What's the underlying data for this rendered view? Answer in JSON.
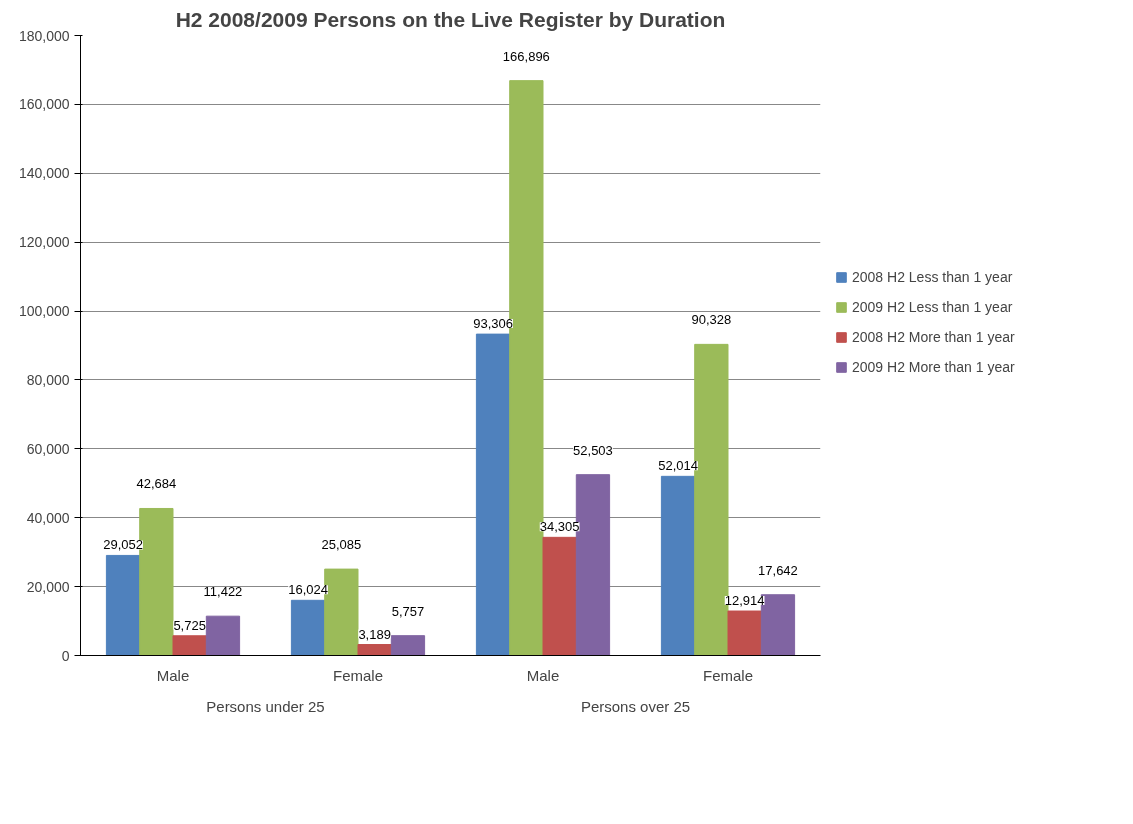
{
  "chart_data": {
    "type": "bar",
    "title": "H2 2008/2009 Persons on the Live Register by Duration",
    "categories": [
      "Male",
      "Female",
      "Male",
      "Female"
    ],
    "series": [
      {
        "name": "2008 H2 Less than 1 year",
        "color": "#4f81bd",
        "values": [
          29052,
          16024,
          93306,
          52014
        ],
        "value_labels": [
          "29,052",
          "16,024",
          "93,306",
          "52,014"
        ]
      },
      {
        "name": "2009 H2 Less than 1 year",
        "color": "#9bbb59",
        "values": [
          42684,
          25085,
          166896,
          90328
        ],
        "value_labels": [
          "42,684",
          "25,085",
          "166,896",
          "90,328"
        ]
      },
      {
        "name": "2008 H2 More than 1 year",
        "color": "#c0504d",
        "values": [
          5725,
          3189,
          34305,
          12914
        ],
        "value_labels": [
          "5,725",
          "3,189",
          "34,305",
          "12,914"
        ]
      },
      {
        "name": "2009 H2 More than 1 year",
        "color": "#8064a2",
        "values": [
          11422,
          5757,
          52503,
          17642
        ],
        "value_labels": [
          "11,422",
          "5,757",
          "52,503",
          "17,642"
        ]
      }
    ],
    "annotations": [
      "Persons under 25",
      "Persons over 25"
    ],
    "ylim": [
      0,
      180000
    ],
    "yticks": [
      {
        "value": 0,
        "label": "0"
      },
      {
        "value": 20000,
        "label": "20,000"
      },
      {
        "value": 40000,
        "label": "40,000"
      },
      {
        "value": 60000,
        "label": "60,000"
      },
      {
        "value": 80000,
        "label": "80,000"
      },
      {
        "value": 100000,
        "label": "100,000"
      },
      {
        "value": 120000,
        "label": "120,000"
      },
      {
        "value": 140000,
        "label": "140,000"
      },
      {
        "value": 160000,
        "label": "160,000"
      },
      {
        "value": 180000,
        "label": "180,000"
      }
    ],
    "grid": "y",
    "legend": "right"
  }
}
